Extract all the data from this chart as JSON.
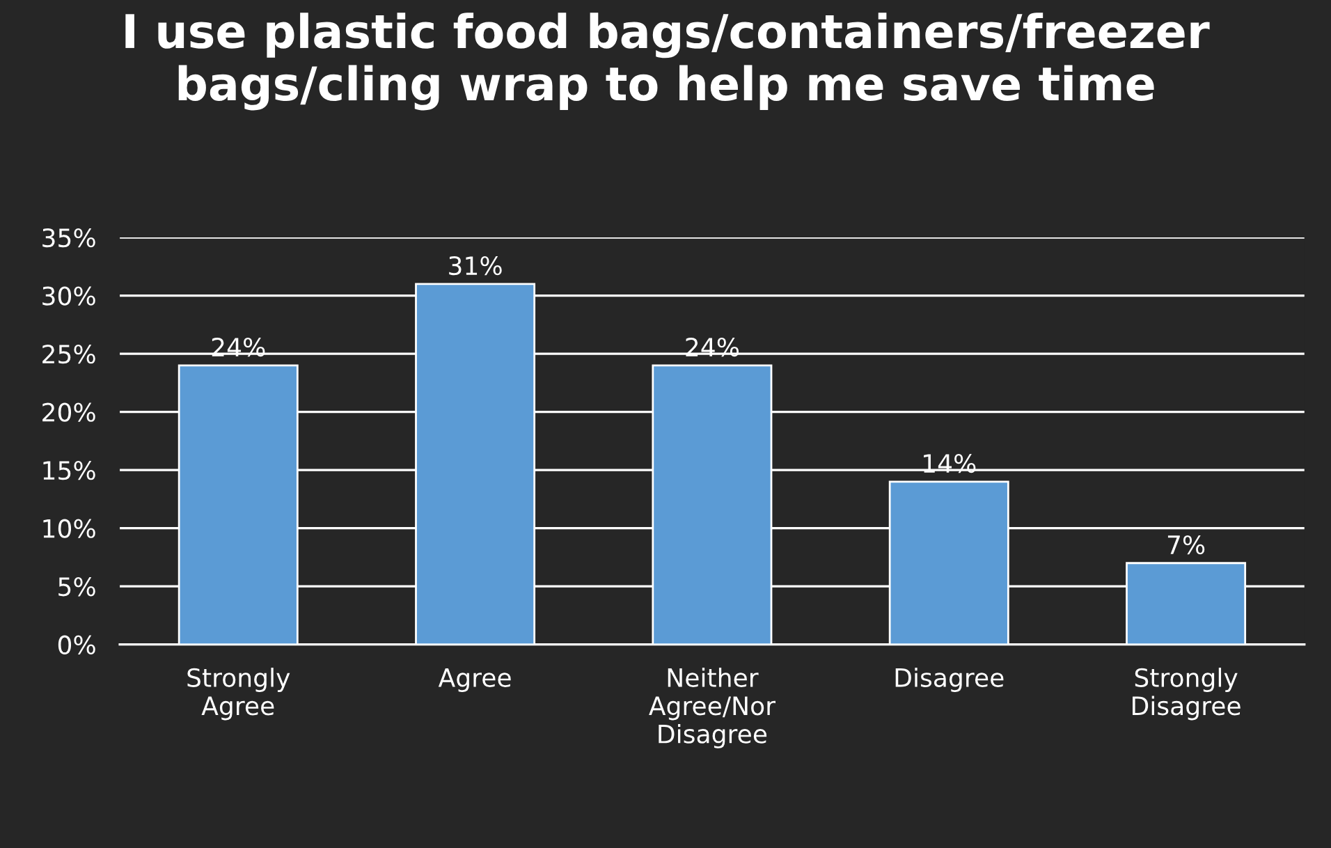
{
  "chart_data": {
    "type": "bar",
    "title": "I use plastic food bags/containers/freezer bags/cling wrap to help me save time",
    "categories": [
      "Strongly Agree",
      "Agree",
      "Neither Agree/Nor Disagree",
      "Disagree",
      "Strongly Disagree"
    ],
    "values": [
      24,
      31,
      24,
      14,
      7
    ],
    "color": "#5b9bd5",
    "ylim": [
      0,
      35
    ],
    "yticks": [
      {
        "value": 0,
        "label": "0%"
      },
      {
        "value": 5,
        "label": "5%"
      },
      {
        "value": 10,
        "label": "10%"
      },
      {
        "value": 15,
        "label": "15%"
      },
      {
        "value": 20,
        "label": "20%"
      },
      {
        "value": 25,
        "label": "25%"
      },
      {
        "value": 30,
        "label": "30%"
      },
      {
        "value": 35,
        "label": "35%"
      }
    ],
    "value_labels": [
      "24%",
      "31%",
      "24%",
      "14%",
      "7%"
    ],
    "grid": "y",
    "legend": false
  }
}
